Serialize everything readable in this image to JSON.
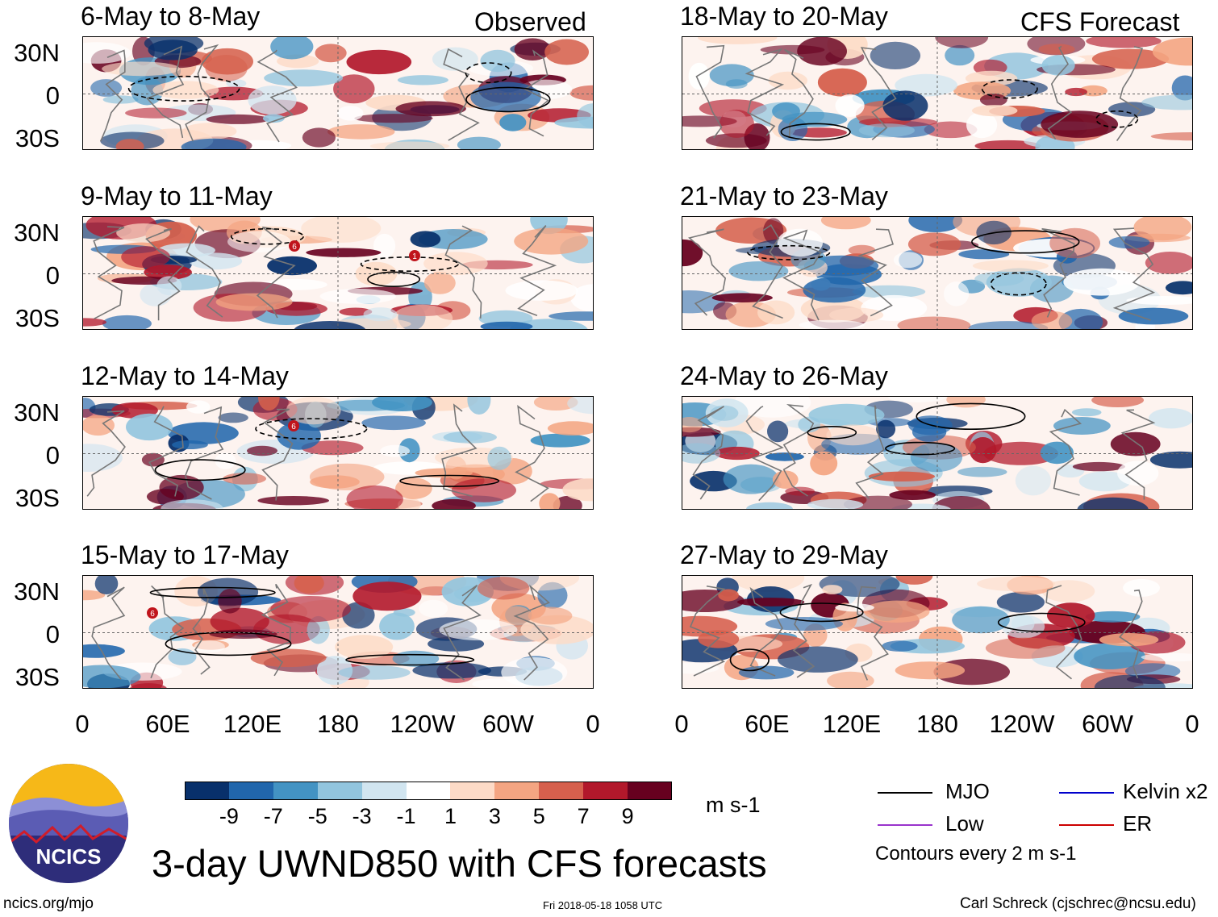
{
  "header": {
    "left_tag": "Observed",
    "right_tag": "CFS Forecast"
  },
  "panels_left": [
    {
      "title": "6-May to 8-May"
    },
    {
      "title": "9-May to 11-May"
    },
    {
      "title": "12-May to 14-May"
    },
    {
      "title": "15-May to 17-May"
    }
  ],
  "panels_right": [
    {
      "title": "18-May to 20-May"
    },
    {
      "title": "21-May to 23-May"
    },
    {
      "title": "24-May to 26-May"
    },
    {
      "title": "27-May to 29-May"
    }
  ],
  "lat_labels": [
    "30N",
    "0",
    "30S"
  ],
  "lon_labels": [
    "0",
    "60E",
    "120E",
    "180",
    "120W",
    "60W",
    "0"
  ],
  "storm_markers": [
    {
      "panel": "9-May to 11-May",
      "label": "6"
    },
    {
      "panel": "9-May to 11-May",
      "label": "1"
    },
    {
      "panel": "12-May to 14-May",
      "label": "6"
    },
    {
      "panel": "15-May to 17-May",
      "label": "6"
    }
  ],
  "colorbar": {
    "unit": "m s-1",
    "labels": [
      "-9",
      "-7",
      "-5",
      "-3",
      "-1",
      "1",
      "3",
      "5",
      "7",
      "9"
    ],
    "colors": [
      "#08306b",
      "#2166ac",
      "#4393c3",
      "#92c5de",
      "#d1e5f0",
      "#ffffff",
      "#fddbc7",
      "#f4a582",
      "#d6604d",
      "#b2182b",
      "#67001f"
    ]
  },
  "legend": {
    "items": [
      {
        "label": "MJO",
        "color": "#000000"
      },
      {
        "label": "Kelvin x2",
        "color": "#0000cc"
      },
      {
        "label": "Low",
        "color": "#9933cc"
      },
      {
        "label": "ER",
        "color": "#cc0000"
      }
    ],
    "note": "Contours every 2 m s-1"
  },
  "logo": {
    "text": "NCICS"
  },
  "main_title": "3-day UWND850 with CFS forecasts",
  "footer": {
    "url": "ncics.org/mjo",
    "timestamp": "Fri 2018-05-18 1058 UTC",
    "credit": "Carl Schreck (cjschrec@ncsu.edu)"
  }
}
